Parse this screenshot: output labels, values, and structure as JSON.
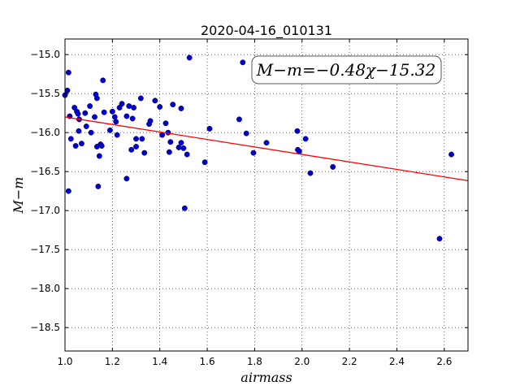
{
  "chart_data": {
    "type": "scatter",
    "title": "2020-04-16_010131",
    "xlabel": "airmass",
    "ylabel": "M−m",
    "xlim": [
      1.0,
      2.7
    ],
    "ylim": [
      -18.8,
      -14.8
    ],
    "xticks": [
      "1.0",
      "1.2",
      "1.4",
      "1.6",
      "1.8",
      "2.0",
      "2.2",
      "2.4",
      "2.6"
    ],
    "yticks": [
      "−15.0",
      "−15.5",
      "−16.0",
      "−16.5",
      "−17.0",
      "−17.5",
      "−18.0",
      "−18.5"
    ],
    "grid": true,
    "annotation": "M−m=−0.48χ−15.32",
    "fit_line": {
      "slope": -0.48,
      "intercept": -15.32,
      "color": "#ff0000"
    },
    "point_color": "#0000cc",
    "points": [
      {
        "x": 1.0,
        "y": -15.52
      },
      {
        "x": 1.01,
        "y": -15.46
      },
      {
        "x": 1.015,
        "y": -15.23
      },
      {
        "x": 1.015,
        "y": -16.75
      },
      {
        "x": 1.02,
        "y": -15.79
      },
      {
        "x": 1.025,
        "y": -16.08
      },
      {
        "x": 1.04,
        "y": -15.68
      },
      {
        "x": 1.045,
        "y": -16.17
      },
      {
        "x": 1.05,
        "y": -15.73
      },
      {
        "x": 1.055,
        "y": -15.76
      },
      {
        "x": 1.058,
        "y": -15.98
      },
      {
        "x": 1.06,
        "y": -15.83
      },
      {
        "x": 1.07,
        "y": -16.14
      },
      {
        "x": 1.085,
        "y": -15.75
      },
      {
        "x": 1.09,
        "y": -15.92
      },
      {
        "x": 1.105,
        "y": -15.66
      },
      {
        "x": 1.11,
        "y": -16.0
      },
      {
        "x": 1.125,
        "y": -15.8
      },
      {
        "x": 1.13,
        "y": -15.51
      },
      {
        "x": 1.135,
        "y": -16.18
      },
      {
        "x": 1.135,
        "y": -15.56
      },
      {
        "x": 1.14,
        "y": -16.69
      },
      {
        "x": 1.145,
        "y": -16.3
      },
      {
        "x": 1.15,
        "y": -16.15
      },
      {
        "x": 1.155,
        "y": -16.17
      },
      {
        "x": 1.16,
        "y": -15.33
      },
      {
        "x": 1.165,
        "y": -15.74
      },
      {
        "x": 1.19,
        "y": -15.97
      },
      {
        "x": 1.2,
        "y": -15.73
      },
      {
        "x": 1.21,
        "y": -15.8
      },
      {
        "x": 1.215,
        "y": -15.86
      },
      {
        "x": 1.22,
        "y": -16.03
      },
      {
        "x": 1.23,
        "y": -15.68
      },
      {
        "x": 1.24,
        "y": -15.63
      },
      {
        "x": 1.26,
        "y": -15.79
      },
      {
        "x": 1.26,
        "y": -16.59
      },
      {
        "x": 1.27,
        "y": -15.66
      },
      {
        "x": 1.28,
        "y": -16.22
      },
      {
        "x": 1.285,
        "y": -15.82
      },
      {
        "x": 1.29,
        "y": -15.68
      },
      {
        "x": 1.3,
        "y": -16.18
      },
      {
        "x": 1.3,
        "y": -16.08
      },
      {
        "x": 1.32,
        "y": -15.56
      },
      {
        "x": 1.325,
        "y": -16.08
      },
      {
        "x": 1.335,
        "y": -16.26
      },
      {
        "x": 1.355,
        "y": -15.89
      },
      {
        "x": 1.36,
        "y": -15.85
      },
      {
        "x": 1.38,
        "y": -15.59
      },
      {
        "x": 1.4,
        "y": -15.67
      },
      {
        "x": 1.41,
        "y": -16.03
      },
      {
        "x": 1.425,
        "y": -15.88
      },
      {
        "x": 1.435,
        "y": -16.0
      },
      {
        "x": 1.44,
        "y": -16.25
      },
      {
        "x": 1.445,
        "y": -16.12
      },
      {
        "x": 1.455,
        "y": -15.64
      },
      {
        "x": 1.48,
        "y": -16.19
      },
      {
        "x": 1.49,
        "y": -16.13
      },
      {
        "x": 1.49,
        "y": -15.69
      },
      {
        "x": 1.5,
        "y": -16.2
      },
      {
        "x": 1.505,
        "y": -16.97
      },
      {
        "x": 1.515,
        "y": -16.28
      },
      {
        "x": 1.525,
        "y": -15.04
      },
      {
        "x": 1.59,
        "y": -16.38
      },
      {
        "x": 1.61,
        "y": -15.95
      },
      {
        "x": 1.735,
        "y": -15.83
      },
      {
        "x": 1.75,
        "y": -15.1
      },
      {
        "x": 1.765,
        "y": -16.01
      },
      {
        "x": 1.795,
        "y": -16.26
      },
      {
        "x": 1.85,
        "y": -16.13
      },
      {
        "x": 1.98,
        "y": -15.98
      },
      {
        "x": 1.982,
        "y": -16.22
      },
      {
        "x": 1.988,
        "y": -16.24
      },
      {
        "x": 2.015,
        "y": -16.08
      },
      {
        "x": 2.035,
        "y": -16.52
      },
      {
        "x": 2.13,
        "y": -16.44
      },
      {
        "x": 2.58,
        "y": -17.36
      },
      {
        "x": 2.63,
        "y": -16.28
      }
    ]
  }
}
